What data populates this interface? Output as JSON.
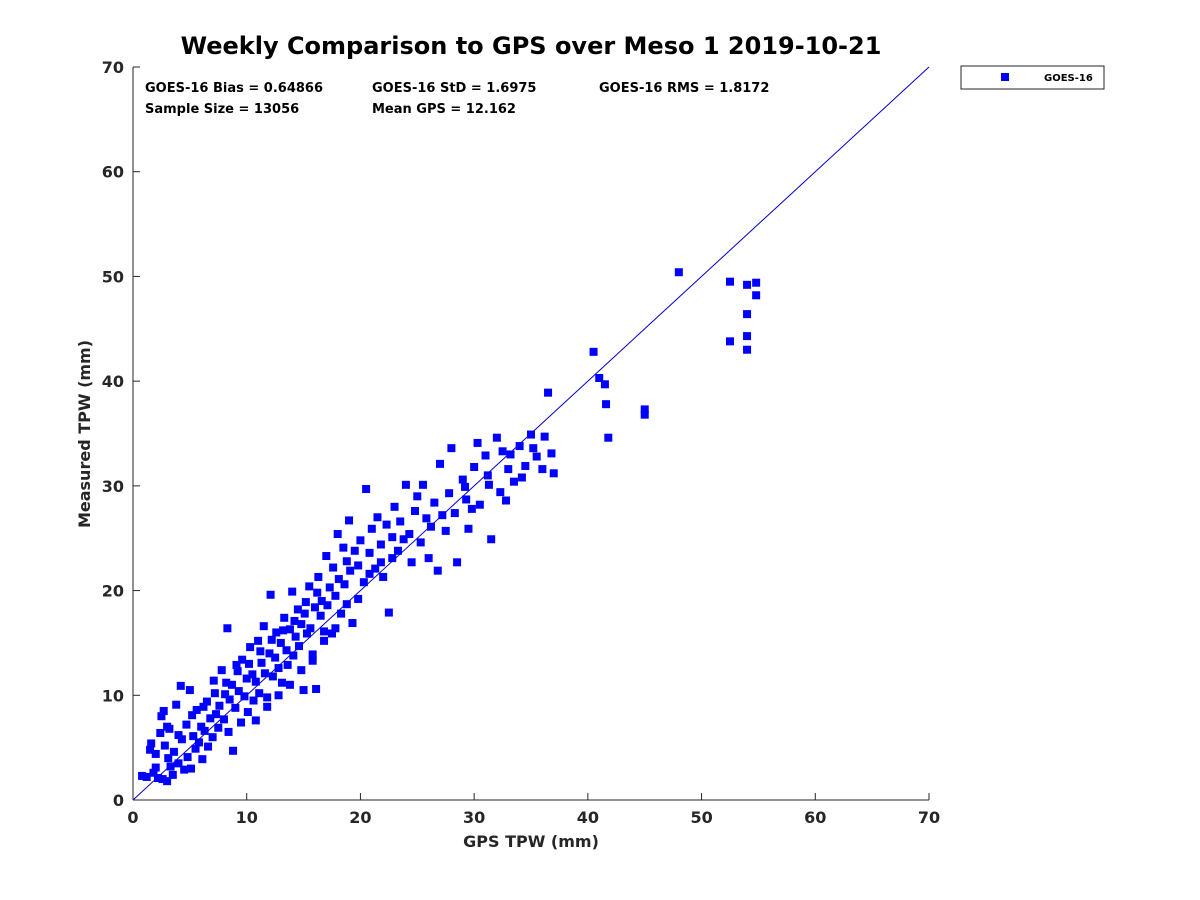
{
  "colors": {
    "marker": "#0000ff",
    "line": "#0000cc",
    "axis": "#262626",
    "background": "#ffffff"
  },
  "chart_data": {
    "type": "scatter",
    "title": "Weekly Comparison to GPS over Meso 1 2019-10-21",
    "xlabel": "GPS TPW (mm)",
    "ylabel": "Measured TPW (mm)",
    "xlim": [
      0,
      70
    ],
    "ylim": [
      0,
      70
    ],
    "xticks": [
      "0",
      "10",
      "20",
      "30",
      "40",
      "50",
      "60",
      "70"
    ],
    "yticks": [
      "0",
      "10",
      "20",
      "30",
      "40",
      "50",
      "60",
      "70"
    ],
    "grid": false,
    "legend": {
      "placement": "outside top-right",
      "entries": [
        "GOES-16"
      ]
    },
    "reference_line": {
      "name": "1:1 line",
      "from": [
        0,
        0
      ],
      "to": [
        70,
        70
      ]
    },
    "stats": {
      "bias": "GOES-16 Bias = 0.64866",
      "std": "GOES-16 StD = 1.6975",
      "rms": "GOES-16 RMS = 1.8172",
      "sample_size": "Sample Size = 13056",
      "mean_gps": "Mean GPS = 12.162"
    },
    "series": [
      {
        "name": "GOES-16",
        "marker": "square",
        "points": [
          [
            0.8,
            2.3
          ],
          [
            1.2,
            2.2
          ],
          [
            1.5,
            4.8
          ],
          [
            1.6,
            5.4
          ],
          [
            1.8,
            2.6
          ],
          [
            2.0,
            3.1
          ],
          [
            2.2,
            2.1
          ],
          [
            2.4,
            6.4
          ],
          [
            2.5,
            8.0
          ],
          [
            2.6,
            2.0
          ],
          [
            2.7,
            8.5
          ],
          [
            2.8,
            5.2
          ],
          [
            3.0,
            1.8
          ],
          [
            3.1,
            4.0
          ],
          [
            3.2,
            6.8
          ],
          [
            3.3,
            3.2
          ],
          [
            3.5,
            2.4
          ],
          [
            3.6,
            4.6
          ],
          [
            3.8,
            9.1
          ],
          [
            4.0,
            3.5
          ],
          [
            4.2,
            10.9
          ],
          [
            4.3,
            5.8
          ],
          [
            4.5,
            2.9
          ],
          [
            4.7,
            7.2
          ],
          [
            4.8,
            4.1
          ],
          [
            5.0,
            10.5
          ],
          [
            5.1,
            3.0
          ],
          [
            5.3,
            6.1
          ],
          [
            5.5,
            4.9
          ],
          [
            5.6,
            8.6
          ],
          [
            5.8,
            5.5
          ],
          [
            6.0,
            7.0
          ],
          [
            6.1,
            3.9
          ],
          [
            6.3,
            6.6
          ],
          [
            6.5,
            9.4
          ],
          [
            6.6,
            5.1
          ],
          [
            6.8,
            7.8
          ],
          [
            7.0,
            6.0
          ],
          [
            7.1,
            11.4
          ],
          [
            7.3,
            8.2
          ],
          [
            7.5,
            6.9
          ],
          [
            7.6,
            9.0
          ],
          [
            7.8,
            12.4
          ],
          [
            8.0,
            7.7
          ],
          [
            8.1,
            10.1
          ],
          [
            8.3,
            16.4
          ],
          [
            8.4,
            6.5
          ],
          [
            8.5,
            9.6
          ],
          [
            8.7,
            11.0
          ],
          [
            8.8,
            4.7
          ],
          [
            9.0,
            8.8
          ],
          [
            9.1,
            12.9
          ],
          [
            9.3,
            10.4
          ],
          [
            9.5,
            7.4
          ],
          [
            9.6,
            13.4
          ],
          [
            9.8,
            9.9
          ],
          [
            10.0,
            11.6
          ],
          [
            10.1,
            8.4
          ],
          [
            10.3,
            14.6
          ],
          [
            10.5,
            12.0
          ],
          [
            10.6,
            9.5
          ],
          [
            10.8,
            11.3
          ],
          [
            11.0,
            15.2
          ],
          [
            11.1,
            10.2
          ],
          [
            11.3,
            13.1
          ],
          [
            11.5,
            16.6
          ],
          [
            11.6,
            12.1
          ],
          [
            11.8,
            9.8
          ],
          [
            12.0,
            14.0
          ],
          [
            12.1,
            19.6
          ],
          [
            12.3,
            11.8
          ],
          [
            12.5,
            13.6
          ],
          [
            12.6,
            16.0
          ],
          [
            12.8,
            12.6
          ],
          [
            13.0,
            15.0
          ],
          [
            13.1,
            11.2
          ],
          [
            13.3,
            17.4
          ],
          [
            13.5,
            14.3
          ],
          [
            13.6,
            12.9
          ],
          [
            13.8,
            16.3
          ],
          [
            14.0,
            19.9
          ],
          [
            14.1,
            13.8
          ],
          [
            14.3,
            15.6
          ],
          [
            14.5,
            18.2
          ],
          [
            14.6,
            14.7
          ],
          [
            14.8,
            16.8
          ],
          [
            15.0,
            10.5
          ],
          [
            15.1,
            17.8
          ],
          [
            15.3,
            15.9
          ],
          [
            15.5,
            20.4
          ],
          [
            15.6,
            16.4
          ],
          [
            15.8,
            13.3
          ],
          [
            16.0,
            18.4
          ],
          [
            16.1,
            10.6
          ],
          [
            16.3,
            21.3
          ],
          [
            16.5,
            17.6
          ],
          [
            16.6,
            19.0
          ],
          [
            16.8,
            16.1
          ],
          [
            17.0,
            23.3
          ],
          [
            17.1,
            18.6
          ],
          [
            17.3,
            20.3
          ],
          [
            17.5,
            15.9
          ],
          [
            17.6,
            22.2
          ],
          [
            17.8,
            19.5
          ],
          [
            18.0,
            25.4
          ],
          [
            18.1,
            21.1
          ],
          [
            18.3,
            17.8
          ],
          [
            18.5,
            24.1
          ],
          [
            18.6,
            20.6
          ],
          [
            18.8,
            22.8
          ],
          [
            19.0,
            26.7
          ],
          [
            19.1,
            21.9
          ],
          [
            19.3,
            16.9
          ],
          [
            19.5,
            23.8
          ],
          [
            19.8,
            22.4
          ],
          [
            20.0,
            24.8
          ],
          [
            20.3,
            20.8
          ],
          [
            20.5,
            29.7
          ],
          [
            20.8,
            23.6
          ],
          [
            21.0,
            25.9
          ],
          [
            21.3,
            22.1
          ],
          [
            21.5,
            27.0
          ],
          [
            21.8,
            24.4
          ],
          [
            22.0,
            21.3
          ],
          [
            22.3,
            26.3
          ],
          [
            22.5,
            17.9
          ],
          [
            22.8,
            25.1
          ],
          [
            23.0,
            28.0
          ],
          [
            23.3,
            23.8
          ],
          [
            23.5,
            26.6
          ],
          [
            24.0,
            30.1
          ],
          [
            24.3,
            25.4
          ],
          [
            24.5,
            22.7
          ],
          [
            24.8,
            27.6
          ],
          [
            25.0,
            29.0
          ],
          [
            25.3,
            24.6
          ],
          [
            25.5,
            30.1
          ],
          [
            25.8,
            26.9
          ],
          [
            26.0,
            23.1
          ],
          [
            26.5,
            28.4
          ],
          [
            26.8,
            21.9
          ],
          [
            27.0,
            32.1
          ],
          [
            27.5,
            25.7
          ],
          [
            27.8,
            29.3
          ],
          [
            28.0,
            33.6
          ],
          [
            28.3,
            27.4
          ],
          [
            28.5,
            22.7
          ],
          [
            29.0,
            30.6
          ],
          [
            29.3,
            28.7
          ],
          [
            29.5,
            25.9
          ],
          [
            30.0,
            31.8
          ],
          [
            30.3,
            34.1
          ],
          [
            30.5,
            28.2
          ],
          [
            31.0,
            32.9
          ],
          [
            31.3,
            30.1
          ],
          [
            31.5,
            24.9
          ],
          [
            32.0,
            34.6
          ],
          [
            32.3,
            29.4
          ],
          [
            32.5,
            33.3
          ],
          [
            33.0,
            31.6
          ],
          [
            33.5,
            30.4
          ],
          [
            34.0,
            33.8
          ],
          [
            34.5,
            31.9
          ],
          [
            35.0,
            34.9
          ],
          [
            35.5,
            32.8
          ],
          [
            36.0,
            31.6
          ],
          [
            36.5,
            38.9
          ],
          [
            36.8,
            33.1
          ],
          [
            37.0,
            31.2
          ],
          [
            40.5,
            42.8
          ],
          [
            41.0,
            40.3
          ],
          [
            41.5,
            39.7
          ],
          [
            41.8,
            34.6
          ],
          [
            41.6,
            37.8
          ],
          [
            45.0,
            37.3
          ],
          [
            45.0,
            36.8
          ],
          [
            48.0,
            50.4
          ],
          [
            52.5,
            49.5
          ],
          [
            52.5,
            43.8
          ],
          [
            54.0,
            49.2
          ],
          [
            54.0,
            46.4
          ],
          [
            54.0,
            44.3
          ],
          [
            54.0,
            43.0
          ],
          [
            54.8,
            49.4
          ],
          [
            54.8,
            48.2
          ],
          [
            2.0,
            4.4
          ],
          [
            3.0,
            7.0
          ],
          [
            4.0,
            6.2
          ],
          [
            5.2,
            8.1
          ],
          [
            6.2,
            8.9
          ],
          [
            7.2,
            10.2
          ],
          [
            8.2,
            11.2
          ],
          [
            9.2,
            12.3
          ],
          [
            10.2,
            13.0
          ],
          [
            11.2,
            14.2
          ],
          [
            12.2,
            15.3
          ],
          [
            13.2,
            16.2
          ],
          [
            14.2,
            17.1
          ],
          [
            15.2,
            18.9
          ],
          [
            16.2,
            19.8
          ],
          [
            10.8,
            7.6
          ],
          [
            11.8,
            8.9
          ],
          [
            12.8,
            10.0
          ],
          [
            13.8,
            11.0
          ],
          [
            14.8,
            12.4
          ],
          [
            15.8,
            13.9
          ],
          [
            16.8,
            15.2
          ],
          [
            17.8,
            16.4
          ],
          [
            18.8,
            18.7
          ],
          [
            19.8,
            19.2
          ],
          [
            20.8,
            21.6
          ],
          [
            21.8,
            22.7
          ],
          [
            22.8,
            23.1
          ],
          [
            23.8,
            24.9
          ],
          [
            26.2,
            26.1
          ],
          [
            27.2,
            27.2
          ],
          [
            29.2,
            29.9
          ],
          [
            31.2,
            31.0
          ],
          [
            33.2,
            33.0
          ],
          [
            35.2,
            33.6
          ],
          [
            29.8,
            27.8
          ],
          [
            32.8,
            28.6
          ],
          [
            34.2,
            30.8
          ],
          [
            36.2,
            34.7
          ]
        ]
      }
    ]
  }
}
